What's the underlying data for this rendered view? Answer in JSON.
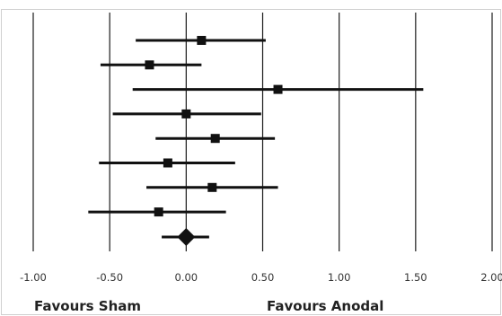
{
  "chart_data": {
    "type": "forest",
    "x_ticks": [
      -1.0,
      -0.5,
      0.0,
      0.5,
      1.0,
      1.5,
      2.0
    ],
    "x_tick_labels": [
      "-1.00",
      "-0.50",
      "0.00",
      "0.50",
      "1.00",
      "1.50",
      "2.00"
    ],
    "xlim": [
      -1.0,
      2.0
    ],
    "grid": "vertical lines at each x tick",
    "studies": [
      {
        "estimate": 0.1,
        "ci_low": -0.33,
        "ci_high": 0.52
      },
      {
        "estimate": -0.24,
        "ci_low": -0.56,
        "ci_high": 0.1
      },
      {
        "estimate": 0.6,
        "ci_low": -0.35,
        "ci_high": 1.55
      },
      {
        "estimate": 0.0,
        "ci_low": -0.48,
        "ci_high": 0.49
      },
      {
        "estimate": 0.19,
        "ci_low": -0.2,
        "ci_high": 0.58
      },
      {
        "estimate": -0.12,
        "ci_low": -0.57,
        "ci_high": 0.32
      },
      {
        "estimate": 0.17,
        "ci_low": -0.26,
        "ci_high": 0.6
      },
      {
        "estimate": -0.18,
        "ci_low": -0.64,
        "ci_high": 0.26
      }
    ],
    "summary": {
      "estimate": 0.0,
      "ci_low": -0.16,
      "ci_high": 0.15
    },
    "annotations": {
      "left": "Favours Sham",
      "right": "Favours Anodal"
    }
  }
}
